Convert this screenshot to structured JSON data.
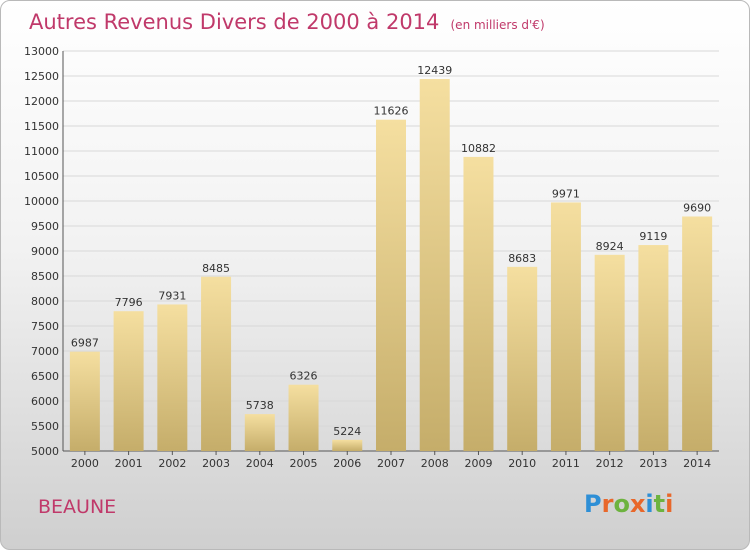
{
  "header": {
    "title": "Autres Revenus Divers de 2000 à 2014",
    "subtitle": "(en milliers d'€)"
  },
  "footer": {
    "place": "BEAUNE",
    "logo_text": "Proxiti"
  },
  "colors": {
    "title": "#c0396a",
    "bar_top": "#f5dfa0",
    "bar_bottom": "#c5ad6a",
    "logo_letters": [
      "#2e8fd6",
      "#e8672a",
      "#6db33f",
      "#e8672a",
      "#2e8fd6",
      "#6db33f",
      "#e8672a"
    ]
  },
  "chart_data": {
    "type": "bar",
    "categories": [
      "2000",
      "2001",
      "2002",
      "2003",
      "2004",
      "2005",
      "2006",
      "2007",
      "2008",
      "2009",
      "2010",
      "2011",
      "2012",
      "2013",
      "2014"
    ],
    "values": [
      6987,
      7796,
      7931,
      8485,
      5738,
      6326,
      5224,
      11626,
      12439,
      10882,
      8683,
      9971,
      8924,
      9119,
      9690
    ],
    "ylim": [
      5000,
      13000
    ],
    "yticks": [
      5000,
      5500,
      6000,
      6500,
      7000,
      7500,
      8000,
      8500,
      9000,
      9500,
      10000,
      10500,
      11000,
      11500,
      12000,
      12500,
      13000
    ],
    "grid": true,
    "legend": "none"
  }
}
